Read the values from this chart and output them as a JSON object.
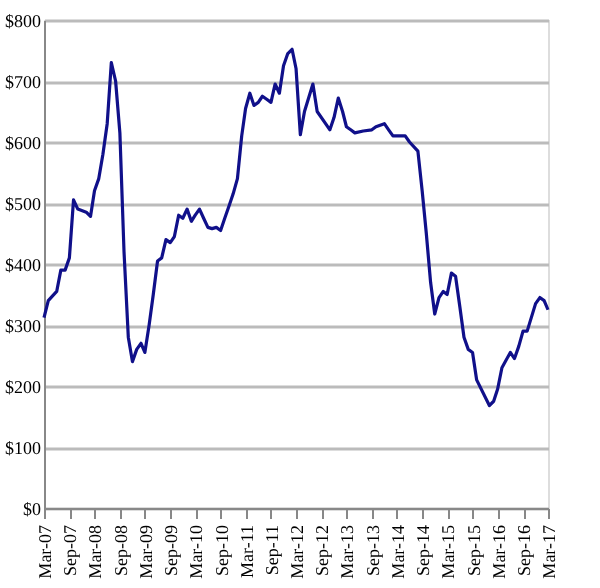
{
  "chart_data": {
    "type": "line",
    "x": [
      "2007-03",
      "2007-04",
      "2007-06",
      "2007-07",
      "2007-08",
      "2007-09",
      "2007-10",
      "2007-11",
      "2008-01",
      "2008-02",
      "2008-03",
      "2008-04",
      "2008-05",
      "2008-06",
      "2008-07",
      "2008-08",
      "2008-09",
      "2008-10",
      "2008-11",
      "2008-12",
      "2009-01",
      "2009-02",
      "2009-03",
      "2009-04",
      "2009-05",
      "2009-06",
      "2009-07",
      "2009-08",
      "2009-09",
      "2009-10",
      "2009-11",
      "2009-12",
      "2010-01",
      "2010-02",
      "2010-03",
      "2010-04",
      "2010-05",
      "2010-06",
      "2010-07",
      "2010-08",
      "2010-09",
      "2010-10",
      "2010-11",
      "2010-12",
      "2011-01",
      "2011-02",
      "2011-03",
      "2011-04",
      "2011-05",
      "2011-06",
      "2011-07",
      "2011-08",
      "2011-09",
      "2011-10",
      "2011-11",
      "2011-12",
      "2012-01",
      "2012-02",
      "2012-03",
      "2012-04",
      "2012-05",
      "2012-07",
      "2012-08",
      "2012-10",
      "2012-11",
      "2012-12",
      "2013-01",
      "2013-02",
      "2013-03",
      "2013-04",
      "2013-05",
      "2013-07",
      "2013-09",
      "2013-10",
      "2013-12",
      "2014-01",
      "2014-02",
      "2014-05",
      "2014-06",
      "2014-08",
      "2014-09",
      "2014-10",
      "2014-11",
      "2014-12",
      "2015-01",
      "2015-02",
      "2015-03",
      "2015-04",
      "2015-05",
      "2015-06",
      "2015-07",
      "2015-08",
      "2015-09",
      "2015-10",
      "2016-01",
      "2016-02",
      "2016-03",
      "2016-04",
      "2016-06",
      "2016-07",
      "2016-08",
      "2016-09",
      "2016-10",
      "2016-12",
      "2017-01",
      "2017-02",
      "2017-03"
    ],
    "series": [
      {
        "color": "#10108a",
        "values": [
          312,
          340,
          355,
          390,
          390,
          410,
          505,
          490,
          485,
          478,
          520,
          540,
          580,
          630,
          730,
          700,
          615,
          420,
          280,
          240,
          260,
          270,
          255,
          300,
          350,
          405,
          410,
          440,
          435,
          445,
          480,
          475,
          490,
          470,
          480,
          490,
          475,
          460,
          458,
          460,
          455,
          475,
          495,
          515,
          540,
          610,
          655,
          680,
          660,
          665,
          675,
          670,
          665,
          695,
          680,
          725,
          745,
          752,
          720,
          612,
          650,
          695,
          650,
          630,
          620,
          640,
          672,
          650,
          625,
          620,
          615,
          618,
          620,
          625,
          630,
          620,
          610,
          610,
          600,
          585,
          520,
          450,
          370,
          318,
          345,
          355,
          350,
          385,
          380,
          330,
          280,
          260,
          255,
          210,
          168,
          175,
          195,
          230,
          255,
          245,
          265,
          290,
          290,
          335,
          345,
          340,
          325
        ]
      }
    ],
    "xlim": [
      "2007-03",
      "2017-03"
    ],
    "xticks": [
      {
        "value": "2007-03",
        "label": "Mar-07"
      },
      {
        "value": "2007-09",
        "label": "Sep-07"
      },
      {
        "value": "2008-03",
        "label": "Mar-08"
      },
      {
        "value": "2008-09",
        "label": "Sep-08"
      },
      {
        "value": "2009-03",
        "label": "Mar-09"
      },
      {
        "value": "2009-09",
        "label": "Sep-09"
      },
      {
        "value": "2010-03",
        "label": "Mar-10"
      },
      {
        "value": "2010-09",
        "label": "Sep-10"
      },
      {
        "value": "2011-03",
        "label": "Mar-11"
      },
      {
        "value": "2011-09",
        "label": "Sep-11"
      },
      {
        "value": "2012-03",
        "label": "Mar-12"
      },
      {
        "value": "2012-09",
        "label": "Sep-12"
      },
      {
        "value": "2013-03",
        "label": "Mar-13"
      },
      {
        "value": "2013-09",
        "label": "Sep-13"
      },
      {
        "value": "2014-03",
        "label": "Mar-14"
      },
      {
        "value": "2014-09",
        "label": "Sep-14"
      },
      {
        "value": "2015-03",
        "label": "Mar-15"
      },
      {
        "value": "2015-09",
        "label": "Sep-15"
      },
      {
        "value": "2016-03",
        "label": "Mar-16"
      },
      {
        "value": "2016-09",
        "label": "Sep-16"
      },
      {
        "value": "2017-03",
        "label": "Mar-17"
      }
    ],
    "ylim": [
      0,
      800
    ],
    "yticks": [
      {
        "value": 0,
        "label": "$0"
      },
      {
        "value": 100,
        "label": "$100"
      },
      {
        "value": 200,
        "label": "$200"
      },
      {
        "value": 300,
        "label": "$300"
      },
      {
        "value": 400,
        "label": "$400"
      },
      {
        "value": 500,
        "label": "$500"
      },
      {
        "value": 600,
        "label": "$600"
      },
      {
        "value": 700,
        "label": "$700"
      },
      {
        "value": 800,
        "label": "$800"
      }
    ],
    "grid": "y",
    "marker": "none",
    "line_style": "solid"
  }
}
